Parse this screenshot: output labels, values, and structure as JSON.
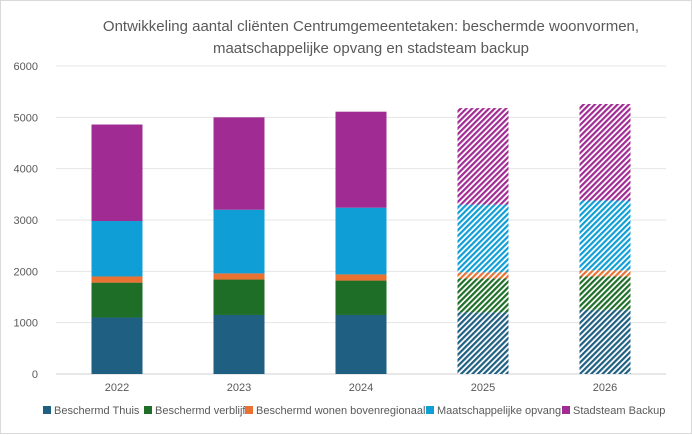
{
  "chart_data": {
    "type": "bar",
    "stacked": true,
    "title_lines": [
      "Ontwikkeling aantal cliënten Centrumgemeentetaken: beschermde woonvormen,",
      "maatschappelijke opvang en stadsteam backup"
    ],
    "xlabel": "",
    "ylabel": "",
    "categories": [
      "2022",
      "2023",
      "2024",
      "2025",
      "2026"
    ],
    "hatched_categories": [
      "2025",
      "2026"
    ],
    "ylim": [
      0,
      6000
    ],
    "yticks": [
      "0",
      "1000",
      "2000",
      "3000",
      "4000",
      "5000",
      "6000"
    ],
    "grid": true,
    "legend_position": "bottom",
    "series": [
      {
        "name": "Beschermd Thuis",
        "color": "#1f5f82",
        "values": [
          1100,
          1150,
          1150,
          1200,
          1250
        ]
      },
      {
        "name": "Beschermd verblijf",
        "color": "#1e6e27",
        "values": [
          680,
          690,
          670,
          660,
          650
        ]
      },
      {
        "name": "Beschermd wonen bovenregionaal",
        "color": "#e97132",
        "values": [
          120,
          120,
          120,
          120,
          120
        ]
      },
      {
        "name": "Maatschappelijke opvang",
        "color": "#0f9ed5",
        "values": [
          1080,
          1240,
          1300,
          1320,
          1360
        ]
      },
      {
        "name": "Stadsteam Backup",
        "color": "#a02b93",
        "values": [
          1880,
          1800,
          1870,
          1880,
          1880
        ]
      }
    ]
  }
}
